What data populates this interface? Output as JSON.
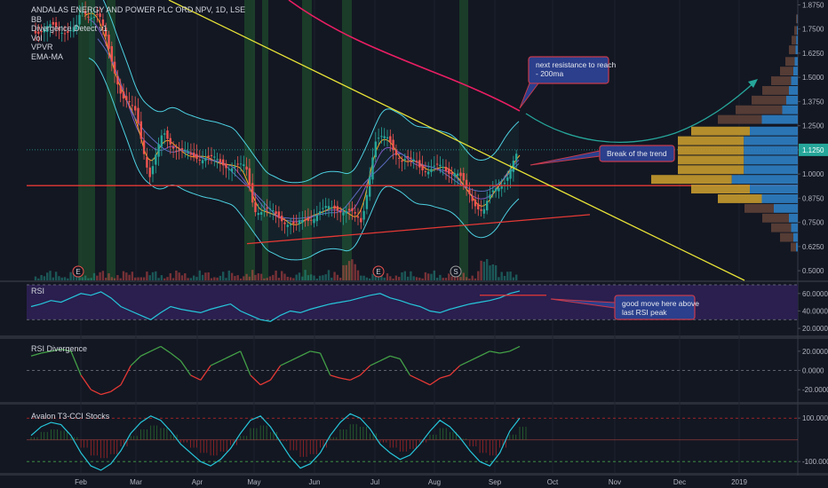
{
  "legend": {
    "title": "ANDALAS ENERGY AND POWER PLC ORD NPV, 1D, LSE",
    "indicators": [
      "BB",
      "Divergence Detect v1",
      "Vol",
      "VPVR",
      "EMA-MA"
    ]
  },
  "panes": {
    "rsi": "RSI",
    "divergence": "RSI Divergence",
    "cci": "Avalon T3-CCI Stocks"
  },
  "colors": {
    "background": "#131722",
    "up": "#26a69a",
    "down": "#ef5350",
    "trendline": "#e8e337",
    "support": "#e53935",
    "resistance_ma": "#e91e63",
    "rsi_line": "#26c6da",
    "rsi_band": "#2a1f4f",
    "callout_fill": "#2b3f8c",
    "callout_border": "#c83a4c"
  },
  "annotations": {
    "resistance": "next resistance to reach\n- 200ma",
    "trend": "Break of the trend",
    "rsi": "good move here above\nlast RSI peak"
  },
  "events": [
    "E",
    "E",
    "S"
  ],
  "chart_data": [
    {
      "type": "candlestick",
      "title": "ANDALAS ENERGY AND POWER PLC ORD NPV, 1D, LSE",
      "x_ticks": [
        "Feb",
        "Mar",
        "Apr",
        "May",
        "Jun",
        "Jul",
        "Aug",
        "Sep",
        "Oct",
        "Nov",
        "Dec",
        "2019"
      ],
      "y_ticks": [
        "1.8750",
        "1.7500",
        "1.6250",
        "1.5000",
        "1.3750",
        "1.2500",
        "1.1250",
        "1.0000",
        "0.8750",
        "0.7500",
        "0.6250",
        "0.5000"
      ],
      "ylim": [
        0.45,
        1.9
      ],
      "last_price": "1.1250",
      "close_path": [
        {
          "x": "Jan 22",
          "y": 1.75
        },
        {
          "x": "Feb 1",
          "y": 1.82
        },
        {
          "x": "Feb 10",
          "y": 1.84
        },
        {
          "x": "Feb 16",
          "y": 1.6
        },
        {
          "x": "Feb 22",
          "y": 1.42
        },
        {
          "x": "Mar 1",
          "y": 1.3
        },
        {
          "x": "Mar 8",
          "y": 1.0
        },
        {
          "x": "Mar 15",
          "y": 1.2
        },
        {
          "x": "Mar 22",
          "y": 1.14
        },
        {
          "x": "Mar 29",
          "y": 1.08
        },
        {
          "x": "Apr 5",
          "y": 1.1
        },
        {
          "x": "Apr 12",
          "y": 1.05
        },
        {
          "x": "Apr 19",
          "y": 1.05
        },
        {
          "x": "Apr 26",
          "y": 1.02
        },
        {
          "x": "May 1",
          "y": 0.83
        },
        {
          "x": "May 8",
          "y": 0.8
        },
        {
          "x": "May 15",
          "y": 0.78
        },
        {
          "x": "May 22",
          "y": 0.72
        },
        {
          "x": "May 29",
          "y": 0.78
        },
        {
          "x": "Jun 5",
          "y": 0.8
        },
        {
          "x": "Jun 12",
          "y": 0.84
        },
        {
          "x": "Jun 19",
          "y": 0.79
        },
        {
          "x": "Jun 25",
          "y": 0.76
        },
        {
          "x": "Jul 1",
          "y": 1.15
        },
        {
          "x": "Jul 8",
          "y": 1.2
        },
        {
          "x": "Jul 15",
          "y": 1.05
        },
        {
          "x": "Jul 22",
          "y": 1.08
        },
        {
          "x": "Jul 29",
          "y": 1.0
        },
        {
          "x": "Aug 5",
          "y": 1.05
        },
        {
          "x": "Aug 12",
          "y": 1.0
        },
        {
          "x": "Aug 19",
          "y": 0.9
        },
        {
          "x": "Aug 26",
          "y": 0.8
        },
        {
          "x": "Sep 1",
          "y": 0.92
        },
        {
          "x": "Sep 8",
          "y": 1.0
        },
        {
          "x": "Sep 14",
          "y": 1.12
        }
      ],
      "support_level": 0.94
    },
    {
      "type": "line",
      "title": "RSI",
      "y_ticks": [
        "60.0000",
        "40.0000",
        "20.0000"
      ],
      "ylim": [
        15,
        70
      ],
      "values": [
        45,
        48,
        52,
        50,
        55,
        60,
        58,
        62,
        55,
        45,
        40,
        35,
        30,
        38,
        45,
        42,
        40,
        38,
        42,
        45,
        48,
        40,
        35,
        30,
        28,
        35,
        40,
        38,
        42,
        45,
        48,
        50,
        52,
        55,
        58,
        60,
        55,
        52,
        48,
        45,
        40,
        38,
        42,
        45,
        48,
        50,
        52,
        55,
        60,
        63
      ]
    },
    {
      "type": "area",
      "title": "RSI Divergence",
      "y_ticks": [
        "20.0000",
        "0.0000",
        "-20.0000"
      ],
      "ylim": [
        -30,
        30
      ],
      "values": [
        15,
        18,
        20,
        22,
        20,
        -5,
        -20,
        -25,
        -22,
        -15,
        5,
        15,
        20,
        25,
        18,
        10,
        -5,
        -10,
        5,
        10,
        15,
        20,
        -5,
        -15,
        -10,
        5,
        10,
        15,
        20,
        18,
        -5,
        -8,
        -10,
        -5,
        5,
        10,
        15,
        12,
        -5,
        -10,
        -15,
        -8,
        -5,
        5,
        10,
        15,
        20,
        18,
        20,
        25
      ]
    },
    {
      "type": "area",
      "title": "Avalon T3-CCI Stocks",
      "y_ticks": [
        "100.0000",
        "-100.0000"
      ],
      "ylim": [
        -140,
        150
      ],
      "values": [
        20,
        60,
        80,
        70,
        20,
        -60,
        -120,
        -140,
        -110,
        -50,
        30,
        80,
        110,
        90,
        40,
        -20,
        -60,
        -100,
        -120,
        -90,
        -40,
        30,
        90,
        110,
        60,
        -10,
        -80,
        -130,
        -110,
        -60,
        20,
        80,
        120,
        100,
        50,
        -20,
        -60,
        -90,
        -70,
        -20,
        40,
        90,
        60,
        10,
        -50,
        -100,
        -120,
        -60,
        40,
        100
      ]
    }
  ]
}
